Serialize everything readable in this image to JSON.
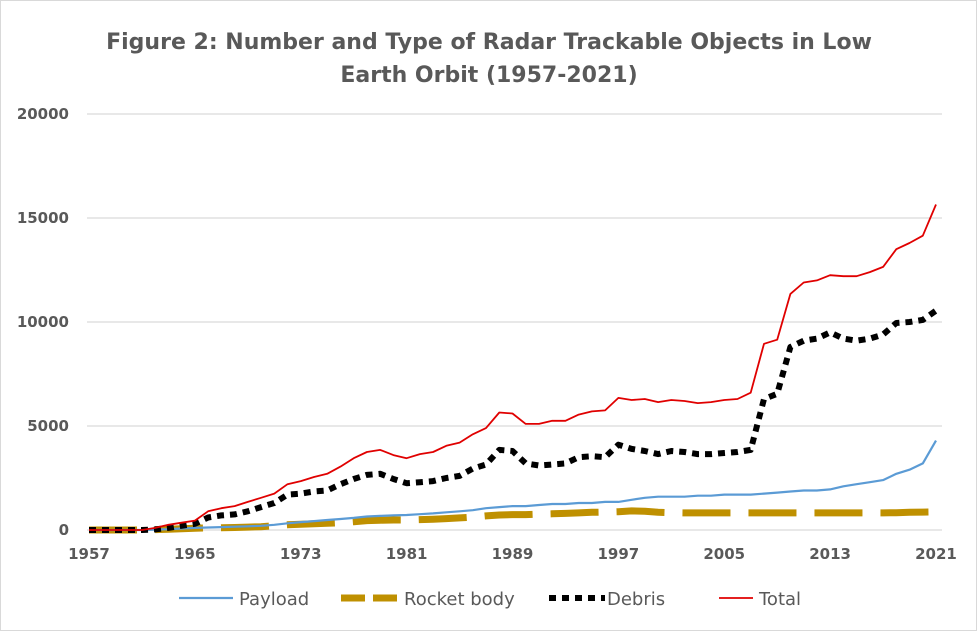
{
  "chart_data": {
    "type": "line",
    "title": [
      "Figure 2: Number and Type of Radar Trackable Objects in Low",
      "Earth Orbit (1957-2021)"
    ],
    "xlabel": "",
    "ylabel": "",
    "xlim": [
      1957,
      2021
    ],
    "ylim": [
      0,
      20000
    ],
    "x_ticks": [
      "1957",
      "1965",
      "1973",
      "1981",
      "1989",
      "1997",
      "2005",
      "2013",
      "2021"
    ],
    "y_ticks": [
      "0",
      "5000",
      "10000",
      "15000",
      "20000"
    ],
    "grid": true,
    "legend_position": "bottom",
    "x_start": 1957,
    "series": [
      {
        "name": "Payload",
        "color": "#5B9BD5",
        "style": "solid",
        "values": [
          0,
          0,
          0,
          0,
          0,
          20,
          40,
          70,
          100,
          120,
          140,
          160,
          180,
          200,
          250,
          320,
          380,
          430,
          480,
          530,
          580,
          650,
          680,
          700,
          720,
          760,
          800,
          850,
          900,
          950,
          1050,
          1100,
          1150,
          1150,
          1200,
          1250,
          1250,
          1300,
          1300,
          1350,
          1350,
          1450,
          1550,
          1600,
          1600,
          1600,
          1650,
          1650,
          1700,
          1700,
          1700,
          1750,
          1800,
          1850,
          1900,
          1900,
          1950,
          2100,
          2200,
          2300,
          2400,
          2700,
          2900,
          3200,
          4300
        ]
      },
      {
        "name": "Rocket body",
        "color": "#BF9000",
        "style": "dashed",
        "values": [
          0,
          0,
          0,
          0,
          0,
          20,
          40,
          60,
          80,
          100,
          110,
          120,
          140,
          160,
          200,
          250,
          280,
          300,
          320,
          350,
          400,
          450,
          470,
          480,
          480,
          500,
          520,
          550,
          580,
          620,
          680,
          720,
          740,
          740,
          760,
          780,
          800,
          820,
          850,
          860,
          880,
          920,
          900,
          850,
          830,
          820,
          820,
          820,
          820,
          820,
          820,
          820,
          820,
          820,
          820,
          820,
          820,
          820,
          820,
          820,
          820,
          830,
          850,
          860,
          870
        ]
      },
      {
        "name": "Debris",
        "color": "#000000",
        "style": "dotted",
        "values": [
          0,
          0,
          0,
          0,
          0,
          30,
          100,
          200,
          300,
          600,
          700,
          750,
          900,
          1100,
          1300,
          1700,
          1750,
          1850,
          1900,
          2200,
          2450,
          2650,
          2700,
          2450,
          2250,
          2300,
          2350,
          2500,
          2600,
          2950,
          3150,
          3850,
          3800,
          3200,
          3100,
          3150,
          3200,
          3500,
          3550,
          3500,
          4100,
          3900,
          3800,
          3650,
          3800,
          3750,
          3650,
          3650,
          3700,
          3750,
          3850,
          6300,
          6550,
          8800,
          9100,
          9200,
          9500,
          9200,
          9100,
          9200,
          9400,
          9950,
          10000,
          10100,
          10550
        ]
      },
      {
        "name": "Total",
        "color": "#E00000",
        "style": "solid",
        "values": [
          0,
          0,
          0,
          0,
          0,
          100,
          250,
          350,
          450,
          900,
          1050,
          1150,
          1350,
          1550,
          1750,
          2200,
          2350,
          2550,
          2700,
          3050,
          3450,
          3750,
          3850,
          3600,
          3450,
          3650,
          3750,
          4050,
          4200,
          4600,
          4900,
          5650,
          5600,
          5100,
          5100,
          5250,
          5250,
          5550,
          5700,
          5750,
          6350,
          6250,
          6300,
          6150,
          6250,
          6200,
          6100,
          6150,
          6250,
          6300,
          6600,
          8950,
          9150,
          11350,
          11900,
          12000,
          12250,
          12200,
          12200,
          12400,
          12650,
          13500,
          13800,
          14150,
          15650
        ]
      }
    ]
  }
}
